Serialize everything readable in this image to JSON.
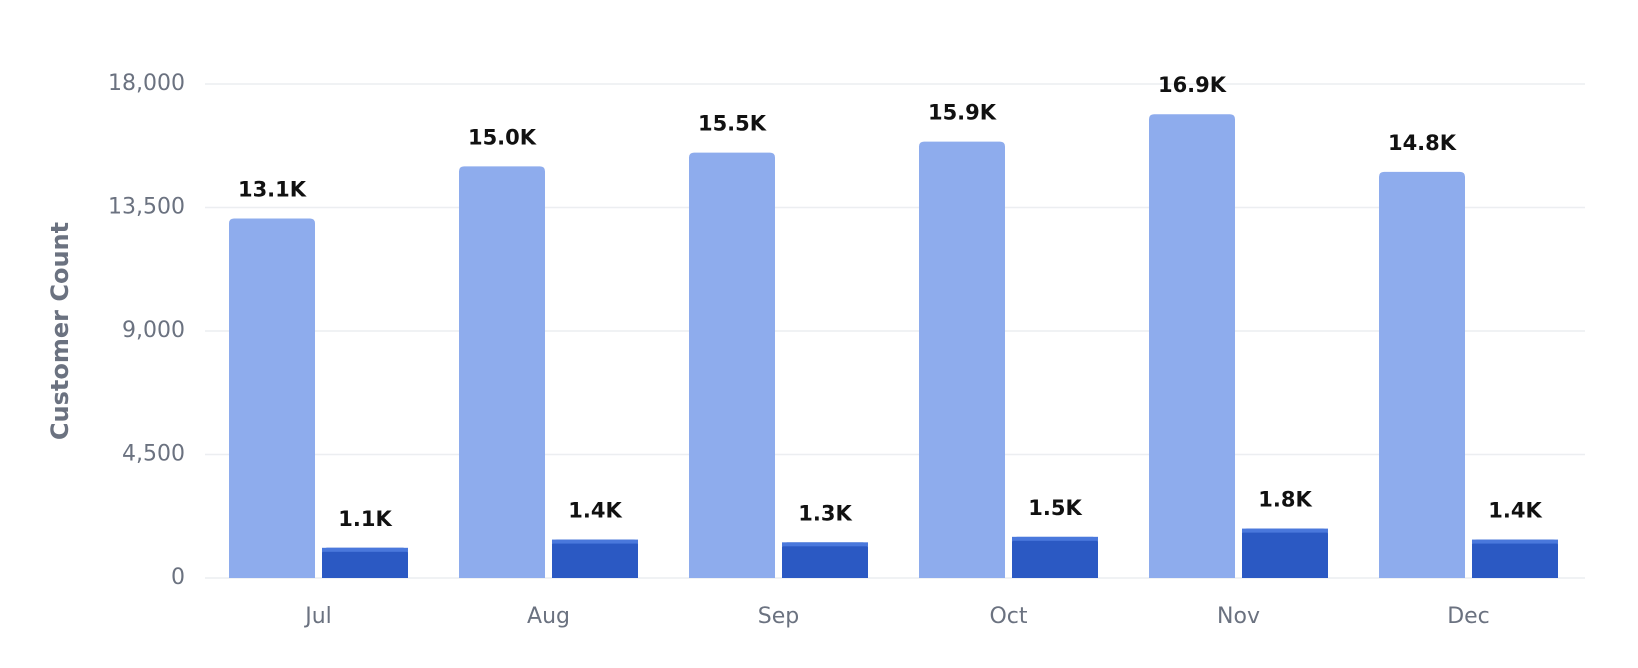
{
  "chart_data": {
    "type": "bar",
    "y_label": "Customer Count",
    "categories": [
      "Jul",
      "Aug",
      "Sep",
      "Oct",
      "Nov",
      "Dec"
    ],
    "series": [
      {
        "color": "#8eaced",
        "values": [
          13100,
          15000,
          15500,
          15900,
          16900,
          14800
        ],
        "value_labels": [
          "13.1K",
          "15.0K",
          "15.5K",
          "15.9K",
          "16.9K",
          "14.8K"
        ]
      },
      {
        "color": "#2b59c3",
        "values": [
          1100,
          1400,
          1300,
          1500,
          1800,
          1400
        ],
        "value_labels": [
          "1.1K",
          "1.4K",
          "1.3K",
          "1.5K",
          "1.8K",
          "1.4K"
        ]
      }
    ],
    "ylim": [
      0,
      18000
    ],
    "yticks": [
      0,
      {
        "value": 4500,
        "label": "4,500"
      },
      {
        "value": 9000,
        "label": "9,000"
      },
      {
        "value": 13500,
        "label": "13,500"
      },
      {
        "value": 18000,
        "label": "18,000"
      }
    ],
    "grid": true
  }
}
